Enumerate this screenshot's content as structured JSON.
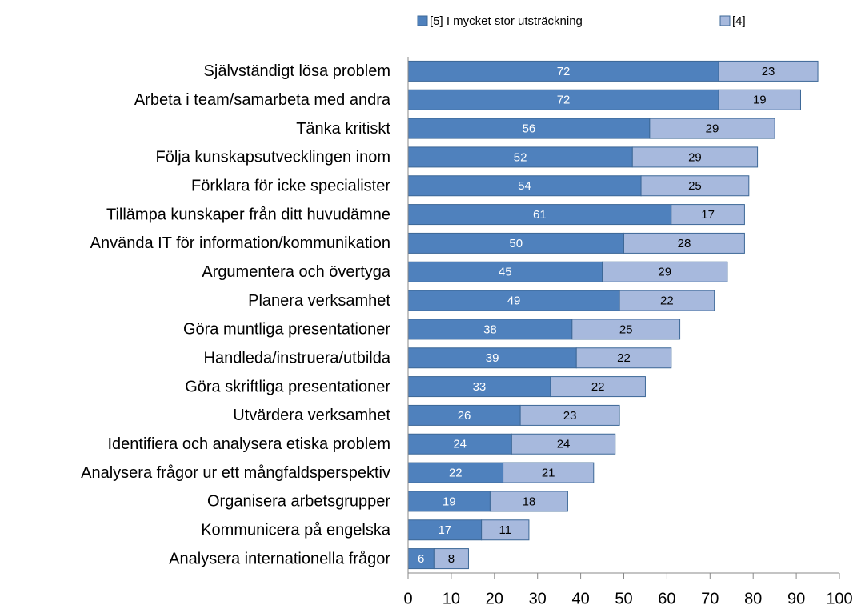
{
  "chart_data": {
    "type": "stacked-bar-horizontal",
    "categories": [
      "Självständigt lösa problem",
      "Arbeta i team/samarbeta med andra",
      "Tänka kritiskt",
      "Följa kunskapsutvecklingen inom",
      "Förklara för icke specialister",
      "Tillämpa kunskaper från ditt huvudämne",
      "Använda IT för information/kommunikation",
      "Argumentera och övertyga",
      "Planera verksamhet",
      "Göra muntliga presentationer",
      "Handleda/instruera/utbilda",
      "Göra skriftliga presentationer",
      "Utvärdera verksamhet",
      "Identifiera och analysera etiska problem",
      "Analysera frågor ur ett mångfaldsperspektiv",
      "Organisera arbetsgrupper",
      "Kommunicera på engelska",
      "Analysera internationella frågor"
    ],
    "series": [
      {
        "name": "[5] I mycket stor utsträckning",
        "color": "#4f81bd",
        "values": [
          72,
          72,
          56,
          52,
          54,
          61,
          50,
          45,
          49,
          38,
          39,
          33,
          26,
          24,
          22,
          19,
          17,
          6
        ]
      },
      {
        "name": "[4]",
        "color": "#a7b9dd",
        "values": [
          23,
          19,
          29,
          29,
          25,
          17,
          28,
          29,
          22,
          25,
          22,
          22,
          23,
          24,
          21,
          18,
          11,
          8
        ]
      }
    ],
    "xlim": [
      0,
      100
    ],
    "xticks": [
      0,
      10,
      20,
      30,
      40,
      50,
      60,
      70,
      80,
      90,
      100
    ],
    "legend": "top",
    "grid": false
  }
}
